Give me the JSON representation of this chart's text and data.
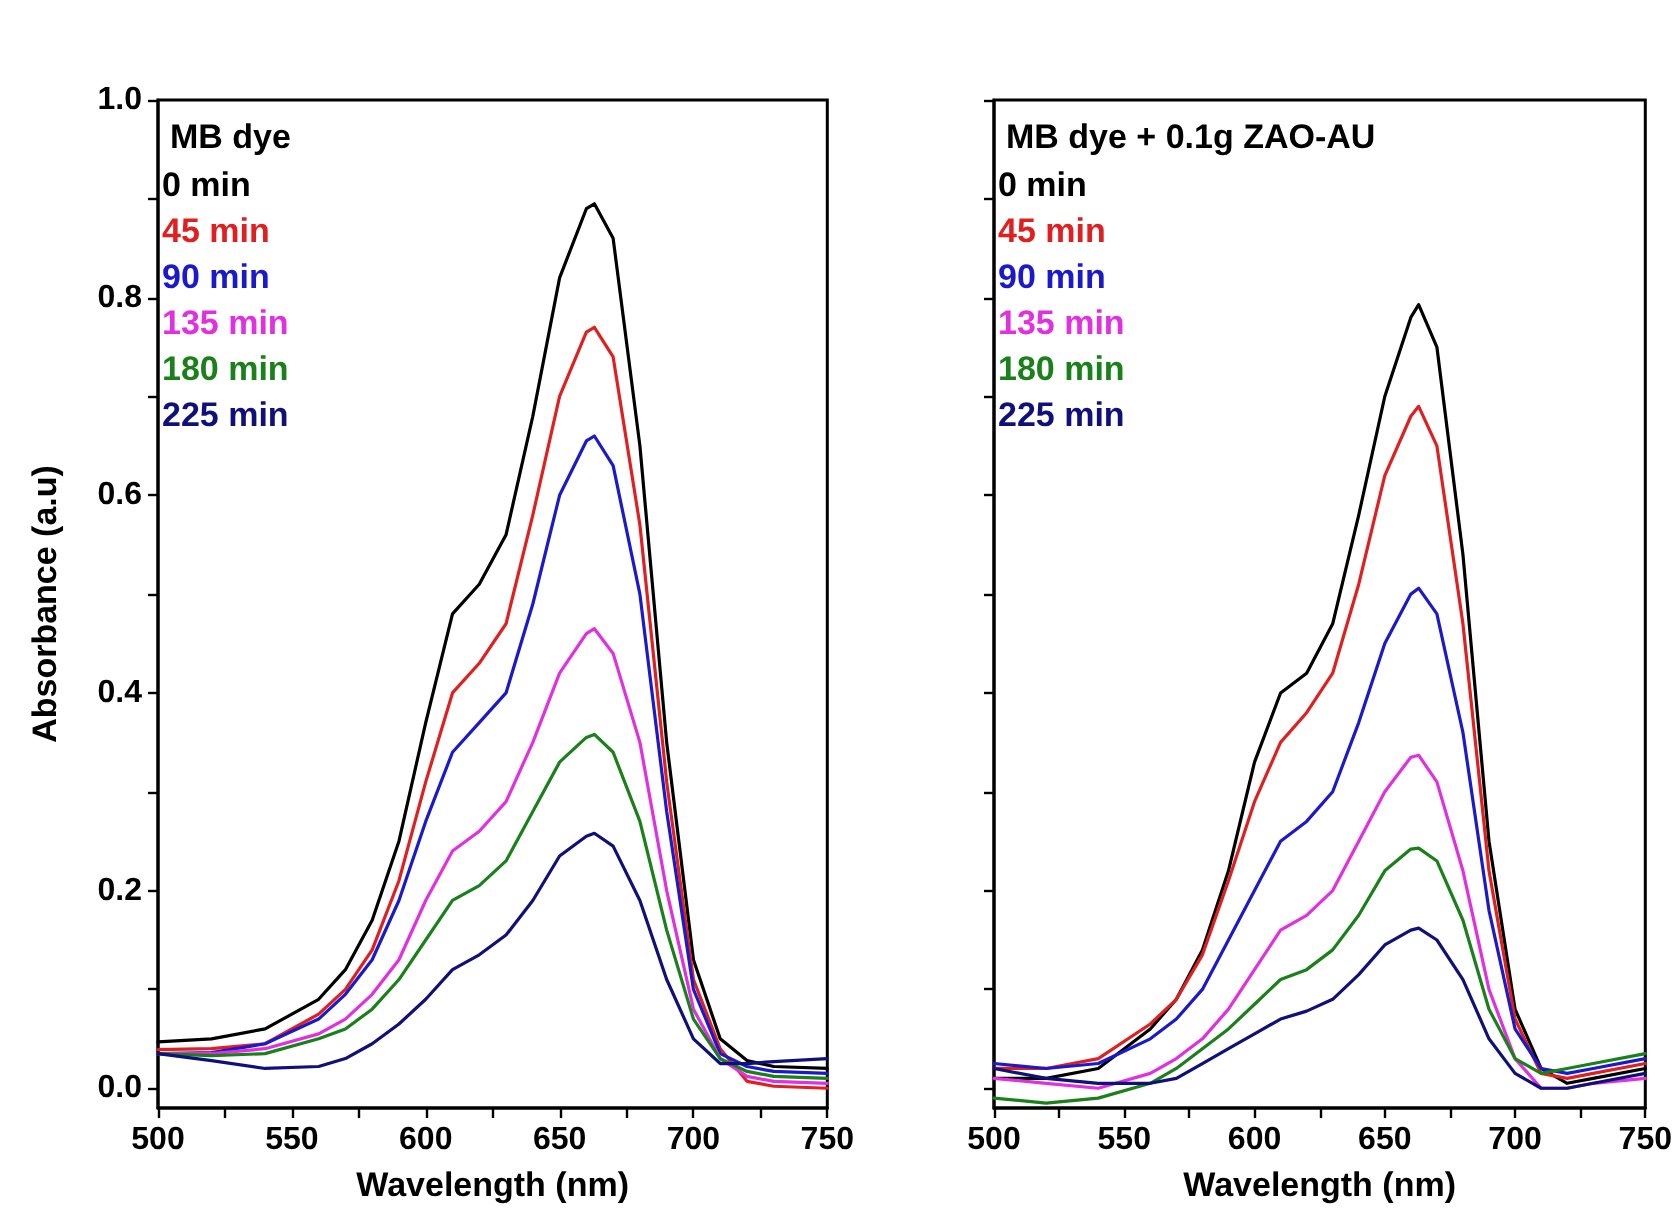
{
  "chart_data": [
    {
      "type": "line",
      "legend_title": "MB dye",
      "xlabel": "Wavelength (nm)",
      "ylabel": "Absorbance (a.u)",
      "xlim": [
        500,
        750
      ],
      "ylim": [
        -0.02,
        1.0
      ],
      "xticks": [
        500,
        {
          "value": 525,
          "label": null
        },
        550,
        {
          "value": 575,
          "label": null
        },
        600,
        {
          "value": 625,
          "label": null
        },
        650,
        {
          "value": 675,
          "label": null
        },
        700,
        {
          "value": 725,
          "label": null
        },
        750
      ],
      "yticks": [
        {
          "value": 0.0,
          "label": "0.0"
        },
        {
          "value": 0.1,
          "label": null
        },
        0.2,
        {
          "value": 0.3,
          "label": null
        },
        0.4,
        {
          "value": 0.5,
          "label": null
        },
        0.6,
        {
          "value": 0.7,
          "label": null
        },
        0.8,
        {
          "value": 0.9,
          "label": null
        },
        {
          "value": 1.0,
          "label": "1.0"
        }
      ],
      "x": [
        500,
        520,
        540,
        560,
        570,
        580,
        590,
        600,
        610,
        620,
        630,
        640,
        650,
        660,
        663,
        670,
        680,
        690,
        700,
        710,
        720,
        730,
        750
      ],
      "legend": "top left",
      "grid": false,
      "marker": "none",
      "line_style": "solid",
      "series": [
        {
          "name": "0 min",
          "color": "#000000",
          "values": [
            0.047,
            0.05,
            0.06,
            0.09,
            0.12,
            0.17,
            0.25,
            0.37,
            0.48,
            0.51,
            0.56,
            0.68,
            0.82,
            0.89,
            0.895,
            0.86,
            0.65,
            0.35,
            0.13,
            0.05,
            0.028,
            0.022,
            0.02
          ]
        },
        {
          "name": "45 min",
          "color": "#e02020",
          "values": [
            0.039,
            0.04,
            0.045,
            0.075,
            0.1,
            0.14,
            0.21,
            0.31,
            0.4,
            0.43,
            0.47,
            0.58,
            0.7,
            0.765,
            0.77,
            0.74,
            0.57,
            0.31,
            0.11,
            0.04,
            0.007,
            0.002,
            0.0
          ]
        },
        {
          "name": "90 min",
          "color": "#1a1acc",
          "values": [
            0.035,
            0.036,
            0.045,
            0.07,
            0.095,
            0.13,
            0.19,
            0.27,
            0.34,
            0.37,
            0.4,
            0.49,
            0.6,
            0.655,
            0.66,
            0.63,
            0.5,
            0.28,
            0.1,
            0.035,
            0.022,
            0.017,
            0.015
          ]
        },
        {
          "name": "135 min",
          "color": "#e030e0",
          "values": [
            0.035,
            0.035,
            0.04,
            0.055,
            0.07,
            0.095,
            0.13,
            0.19,
            0.24,
            0.26,
            0.29,
            0.35,
            0.42,
            0.46,
            0.465,
            0.44,
            0.35,
            0.2,
            0.08,
            0.03,
            0.012,
            0.007,
            0.005
          ]
        },
        {
          "name": "180 min",
          "color": "#1a801a",
          "values": [
            0.035,
            0.033,
            0.035,
            0.05,
            0.06,
            0.08,
            0.11,
            0.15,
            0.19,
            0.205,
            0.23,
            0.28,
            0.33,
            0.355,
            0.358,
            0.34,
            0.27,
            0.16,
            0.07,
            0.03,
            0.017,
            0.012,
            0.01
          ]
        },
        {
          "name": "225 min",
          "color": "#10107a",
          "values": [
            0.035,
            0.028,
            0.02,
            0.022,
            0.03,
            0.045,
            0.065,
            0.09,
            0.12,
            0.135,
            0.155,
            0.19,
            0.235,
            0.255,
            0.258,
            0.245,
            0.19,
            0.11,
            0.05,
            0.025,
            0.025,
            0.027,
            0.03
          ]
        }
      ]
    },
    {
      "type": "line",
      "legend_title": "MB dye + 0.1g ZAO-AU",
      "xlabel": "Wavelength (nm)",
      "xlim": [
        500,
        750
      ],
      "ylim": [
        -0.02,
        1.0
      ],
      "tick_labels": "x",
      "xticks": [
        500,
        {
          "value": 525,
          "label": null
        },
        550,
        {
          "value": 575,
          "label": null
        },
        600,
        {
          "value": 625,
          "label": null
        },
        650,
        {
          "value": 675,
          "label": null
        },
        700,
        {
          "value": 725,
          "label": null
        },
        750
      ],
      "yticks": [
        {
          "value": 0.0,
          "label": null
        },
        {
          "value": 0.1,
          "label": null
        },
        {
          "value": 0.2,
          "label": null
        },
        {
          "value": 0.3,
          "label": null
        },
        {
          "value": 0.4,
          "label": null
        },
        {
          "value": 0.5,
          "label": null
        },
        {
          "value": 0.6,
          "label": null
        },
        {
          "value": 0.7,
          "label": null
        },
        {
          "value": 0.8,
          "label": null
        },
        {
          "value": 0.9,
          "label": null
        },
        {
          "value": 1.0,
          "label": null
        }
      ],
      "x": [
        500,
        520,
        540,
        560,
        570,
        580,
        590,
        600,
        610,
        620,
        630,
        640,
        650,
        660,
        663,
        670,
        680,
        690,
        700,
        710,
        720,
        730,
        750
      ],
      "legend": "top left",
      "grid": false,
      "marker": "none",
      "line_style": "solid",
      "series": [
        {
          "name": "0 min",
          "color": "#000000",
          "values": [
            0.01,
            0.01,
            0.02,
            0.06,
            0.09,
            0.14,
            0.22,
            0.33,
            0.4,
            0.42,
            0.47,
            0.58,
            0.7,
            0.78,
            0.793,
            0.75,
            0.54,
            0.25,
            0.08,
            0.02,
            0.005,
            0.01,
            0.02
          ]
        },
        {
          "name": "45 min",
          "color": "#e02020",
          "values": [
            0.02,
            0.02,
            0.03,
            0.065,
            0.09,
            0.135,
            0.21,
            0.29,
            0.35,
            0.38,
            0.42,
            0.51,
            0.62,
            0.68,
            0.69,
            0.65,
            0.47,
            0.22,
            0.07,
            0.015,
            0.01,
            0.015,
            0.025
          ]
        },
        {
          "name": "90 min",
          "color": "#1a1acc",
          "values": [
            0.025,
            0.02,
            0.025,
            0.05,
            0.07,
            0.1,
            0.15,
            0.2,
            0.25,
            0.27,
            0.3,
            0.37,
            0.45,
            0.5,
            0.506,
            0.48,
            0.36,
            0.18,
            0.06,
            0.02,
            0.015,
            0.02,
            0.03
          ]
        },
        {
          "name": "135 min",
          "color": "#e030e0",
          "values": [
            0.01,
            0.005,
            0.0,
            0.015,
            0.03,
            0.05,
            0.08,
            0.12,
            0.16,
            0.175,
            0.2,
            0.25,
            0.3,
            0.335,
            0.337,
            0.31,
            0.22,
            0.1,
            0.03,
            0.0,
            0.0,
            0.005,
            0.01
          ]
        },
        {
          "name": "180 min",
          "color": "#1a801a",
          "values": [
            -0.01,
            -0.015,
            -0.01,
            0.005,
            0.02,
            0.04,
            0.06,
            0.085,
            0.11,
            0.12,
            0.14,
            0.175,
            0.22,
            0.242,
            0.243,
            0.23,
            0.17,
            0.08,
            0.03,
            0.015,
            0.02,
            0.025,
            0.035
          ]
        },
        {
          "name": "225 min",
          "color": "#10107a",
          "values": [
            0.02,
            0.01,
            0.005,
            0.005,
            0.01,
            0.025,
            0.04,
            0.055,
            0.07,
            0.078,
            0.09,
            0.115,
            0.145,
            0.16,
            0.162,
            0.15,
            0.11,
            0.05,
            0.015,
            0.0,
            0.0,
            0.005,
            0.015
          ]
        }
      ]
    }
  ]
}
